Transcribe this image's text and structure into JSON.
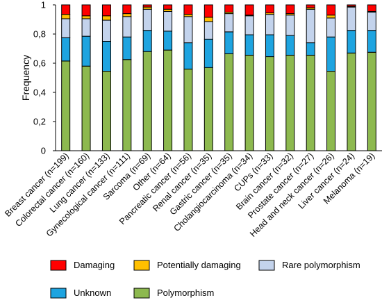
{
  "chart_data": {
    "type": "bar",
    "stacked": true,
    "title": "",
    "xlabel": "",
    "ylabel": "Frequency",
    "ylim": [
      0,
      1
    ],
    "yticks": [
      "0",
      "0,2",
      "0,4",
      "0,6",
      "0,8",
      "1"
    ],
    "ytick_values": [
      0,
      0.2,
      0.4,
      0.6,
      0.8,
      1
    ],
    "grid": false,
    "legend_position": "bottom",
    "categories": [
      "Breast cancer (n=199)",
      "Colorectal cancer (n=160)",
      "Lung cancer (n=133)",
      "Gynecological cancer (n=111)",
      "Sarcoma (n=69)",
      "Other (n=64)",
      "Pancreatic cancer (n=56)",
      "Renal cancer (n=35)",
      "Gastric cancer (n=35)",
      "Cholangiocarcinoma (n=34)",
      "CUPs (n=33)",
      "Brain cancer (n=32)",
      "Prostate cancer (n=27)",
      "Head and neck cancer (n=26)",
      "Liver cancer (n=24)",
      "Melanoma (n=19)"
    ],
    "series": [
      {
        "name": "Polymorphism",
        "color": "#8db94f",
        "values": [
          0.615,
          0.58,
          0.545,
          0.625,
          0.68,
          0.69,
          0.56,
          0.57,
          0.665,
          0.655,
          0.645,
          0.655,
          0.655,
          0.545,
          0.67,
          0.675
        ]
      },
      {
        "name": "Unknown",
        "color": "#1ea4e0",
        "values": [
          0.16,
          0.205,
          0.205,
          0.155,
          0.145,
          0.13,
          0.18,
          0.195,
          0.15,
          0.14,
          0.15,
          0.135,
          0.085,
          0.235,
          0.155,
          0.15
        ]
      },
      {
        "name": "Rare polymorphism",
        "color": "#c3d3ec",
        "values": [
          0.13,
          0.12,
          0.145,
          0.14,
          0.145,
          0.135,
          0.18,
          0.12,
          0.125,
          0.13,
          0.14,
          0.14,
          0.23,
          0.13,
          0.16,
          0.125
        ]
      },
      {
        "name": "Potentially damaging",
        "color": "#ffc000",
        "values": [
          0.03,
          0.02,
          0.03,
          0.02,
          0.015,
          0.015,
          0.015,
          0.03,
          0.01,
          0.005,
          0.01,
          0.01,
          0.01,
          0.02,
          0.005,
          0.005
        ]
      },
      {
        "name": "Damaging",
        "color": "#ff0000",
        "values": [
          0.065,
          0.075,
          0.075,
          0.06,
          0.015,
          0.03,
          0.065,
          0.085,
          0.05,
          0.07,
          0.055,
          0.06,
          0.02,
          0.07,
          0.01,
          0.045
        ]
      }
    ],
    "legend_order": [
      "Damaging",
      "Potentially damaging",
      "Rare polymorphism",
      "Unknown",
      "Polymorphism"
    ]
  }
}
